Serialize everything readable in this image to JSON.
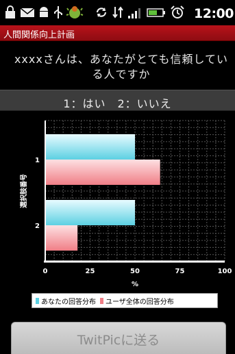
{
  "status_bar": {
    "time": "12:00",
    "icons": [
      "lock-icon",
      "mail-icon",
      "android-icon",
      "usb-icon",
      "bug-icon",
      "sync-icon",
      "data-arrows-icon",
      "signal-icon",
      "battery-icon",
      "alarm-icon"
    ]
  },
  "app": {
    "title": "人間関係向上計画"
  },
  "question": {
    "text": "xxxxさんは、あなたがとても信頼している人ですか"
  },
  "answer_choices": {
    "text": "1：はい　2：いいえ"
  },
  "colors": {
    "your_answers": "#5cd0e2",
    "all_users": "#f07e86",
    "title_bar": "#b8121a"
  },
  "chart_data": {
    "type": "bar",
    "orientation": "horizontal",
    "categories": [
      "1",
      "2"
    ],
    "series": [
      {
        "name": "あなたの回答分布",
        "values": [
          50,
          50
        ]
      },
      {
        "name": "ユーザ全体の回答分布",
        "values": [
          64,
          18
        ]
      }
    ],
    "xlabel": "%",
    "ylabel": "選択肢番号",
    "xlim": [
      0,
      100
    ],
    "xticks": [
      "0",
      "25",
      "50",
      "75",
      "100"
    ],
    "grid": true,
    "legend": "bottom"
  },
  "send_button": {
    "label": "TwitPicに送る"
  }
}
